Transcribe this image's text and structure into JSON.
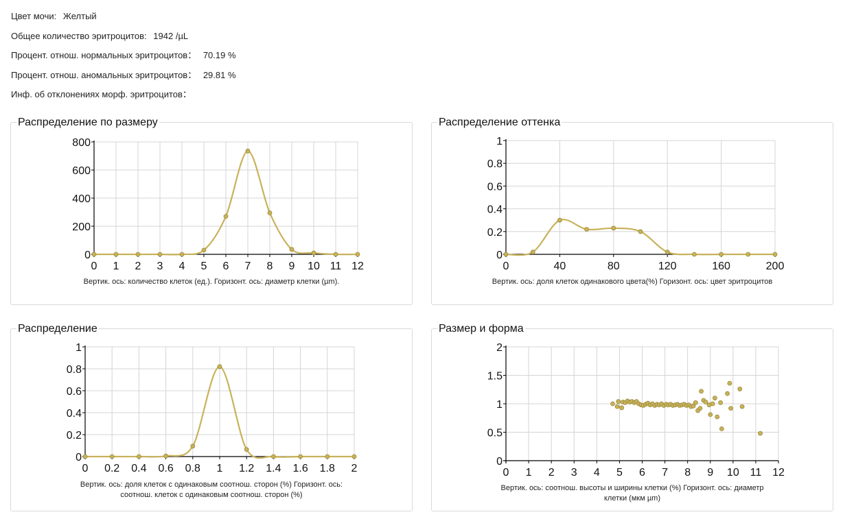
{
  "info": [
    {
      "label": "Цвет мочи:",
      "value": "Желтый"
    },
    {
      "label": "Общее количество эритроцитов:",
      "value": "1942 /µL"
    },
    {
      "label": "Процент. отнош. нормальных эритроцитов：",
      "value": "70.19 %"
    },
    {
      "label": "Процент. отнош. аномальных эритроцитов：",
      "value": "29.81 %"
    },
    {
      "label": "Инф. об отклонениях морф. эритроцитов：",
      "value": ""
    }
  ],
  "chart_data": [
    {
      "id": "size",
      "type": "line",
      "title": "Распределение по размеру",
      "caption": "Вертик. ось: количество клеток (ед.). Горизонт. ось: диаметр клетки (µm).",
      "x": [
        0,
        1,
        2,
        3,
        4,
        5,
        6,
        7,
        8,
        9,
        10,
        11,
        12
      ],
      "y": [
        0,
        0,
        0,
        0,
        0,
        30,
        270,
        735,
        295,
        35,
        10,
        0,
        0
      ],
      "xlim": [
        0,
        12
      ],
      "ylim": [
        0,
        800
      ],
      "xticks": [
        "0",
        "1",
        "2",
        "3",
        "4",
        "5",
        "6",
        "7",
        "8",
        "9",
        "10",
        "11",
        "12"
      ],
      "yticks": [
        "0",
        "200",
        "400",
        "600",
        "800"
      ],
      "line_color": "#c8b25a"
    },
    {
      "id": "hue",
      "type": "line",
      "title": "Распределение оттенка",
      "caption": "Вертик. ось: доля клеток одинакового цвета(%) Горизонт. ось: цвет эритроцитов",
      "x": [
        0,
        20,
        40,
        60,
        80,
        100,
        120,
        140,
        160,
        180,
        200
      ],
      "y": [
        0,
        0.02,
        0.3,
        0.22,
        0.23,
        0.2,
        0.02,
        0,
        0,
        0,
        0
      ],
      "xlim": [
        0,
        200
      ],
      "ylim": [
        0,
        1
      ],
      "xticks": [
        "0",
        "40",
        "80",
        "120",
        "160",
        "200"
      ],
      "yticks": [
        "0",
        "0.2",
        "0.4",
        "0.6",
        "0.8",
        "1"
      ],
      "line_color": "#c8b25a"
    },
    {
      "id": "ratio",
      "type": "line",
      "title": "Распределение",
      "caption": "Вертик. ось: доля клеток с одинаковым соотнош. сторон (%) Горизонт. ось: соотнош. клеток с одинаковым соотнош. сторон (%)",
      "x": [
        0,
        0.2,
        0.4,
        0.6,
        0.8,
        1.0,
        1.2,
        1.4,
        1.6,
        1.8,
        2.0
      ],
      "y": [
        0,
        0,
        0,
        0.005,
        0.095,
        0.82,
        0.065,
        0,
        0,
        0,
        0
      ],
      "xlim": [
        0,
        2
      ],
      "ylim": [
        0,
        1
      ],
      "xticks": [
        "0",
        "0.2",
        "0.4",
        "0.6",
        "0.8",
        "1",
        "1.2",
        "1.4",
        "1.6",
        "1.8",
        "2"
      ],
      "yticks": [
        "0",
        "0.2",
        "0.4",
        "0.6",
        "0.8",
        "1"
      ],
      "line_color": "#c8b25a"
    },
    {
      "id": "shape",
      "type": "scatter",
      "title": "Размер и форма",
      "caption": "Вертик. ось: соотнош. высоты и ширины клетки (%) Горизонт. ось: диаметр клетки (мкм µm)",
      "points": [
        [
          4.7,
          1.0
        ],
        [
          4.9,
          0.95
        ],
        [
          4.95,
          1.04
        ],
        [
          5.1,
          0.93
        ],
        [
          5.15,
          1.03
        ],
        [
          5.25,
          1.02
        ],
        [
          5.35,
          1.05
        ],
        [
          5.45,
          1.03
        ],
        [
          5.55,
          1.04
        ],
        [
          5.65,
          1.02
        ],
        [
          5.75,
          1.04
        ],
        [
          5.85,
          1.0
        ],
        [
          5.95,
          0.98
        ],
        [
          6.05,
          0.97
        ],
        [
          6.15,
          0.99
        ],
        [
          6.25,
          1.01
        ],
        [
          6.35,
          0.98
        ],
        [
          6.45,
          1.0
        ],
        [
          6.55,
          0.97
        ],
        [
          6.65,
          0.99
        ],
        [
          6.75,
          0.98
        ],
        [
          6.85,
          1.0
        ],
        [
          6.95,
          0.97
        ],
        [
          7.05,
          0.99
        ],
        [
          7.15,
          0.98
        ],
        [
          7.25,
          0.99
        ],
        [
          7.35,
          0.97
        ],
        [
          7.45,
          0.98
        ],
        [
          7.55,
          0.99
        ],
        [
          7.65,
          0.97
        ],
        [
          7.75,
          0.98
        ],
        [
          7.85,
          0.99
        ],
        [
          7.95,
          0.97
        ],
        [
          8.05,
          0.98
        ],
        [
          8.15,
          0.95
        ],
        [
          8.25,
          0.96
        ],
        [
          8.35,
          1.02
        ],
        [
          8.45,
          0.88
        ],
        [
          8.55,
          0.92
        ],
        [
          8.6,
          1.22
        ],
        [
          8.7,
          1.06
        ],
        [
          8.8,
          1.03
        ],
        [
          8.95,
          0.98
        ],
        [
          9.0,
          0.81
        ],
        [
          9.1,
          1.0
        ],
        [
          9.2,
          1.1
        ],
        [
          9.3,
          0.77
        ],
        [
          9.45,
          1.02
        ],
        [
          9.5,
          0.56
        ],
        [
          9.75,
          1.18
        ],
        [
          9.85,
          1.36
        ],
        [
          9.9,
          0.92
        ],
        [
          10.3,
          1.26
        ],
        [
          10.4,
          0.95
        ],
        [
          11.2,
          0.48
        ]
      ],
      "xlim": [
        0,
        12
      ],
      "ylim": [
        0,
        2
      ],
      "xticks": [
        "0",
        "1",
        "2",
        "3",
        "4",
        "5",
        "6",
        "7",
        "8",
        "9",
        "10",
        "11",
        "12"
      ],
      "yticks": [
        "0",
        "0.5",
        "1",
        "1.5",
        "2"
      ],
      "line_color": "#c8b25a"
    }
  ]
}
